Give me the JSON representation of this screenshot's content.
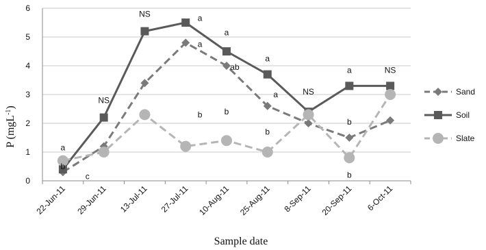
{
  "chart_data": {
    "type": "line",
    "xlabel": "Sample date",
    "ylabel": "P (mgL-1)",
    "ylabel_base": "P (mgL",
    "ylabel_sup": "-1",
    "ylabel_close": ")",
    "ylim": [
      0,
      6
    ],
    "yticks": [
      "0",
      "1",
      "2",
      "3",
      "4",
      "5",
      "6"
    ],
    "grid": true,
    "legend_position": "right",
    "categories": [
      "22-Jun-11",
      "29-Jun-11",
      "13-Jul-11",
      "27-Jul-11",
      "10-Aug-11",
      "25-Aug-11",
      "8-Sep-11",
      "20-Sep-11",
      "6-Oct-11"
    ],
    "series": [
      {
        "name": "Sand",
        "values": [
          0.3,
          1.2,
          3.4,
          4.8,
          4.0,
          2.6,
          2.0,
          1.5,
          2.1
        ],
        "color": "#7a7a7a",
        "dash": "dashed",
        "marker": "diamond"
      },
      {
        "name": "Soil",
        "values": [
          0.4,
          2.2,
          5.2,
          5.5,
          4.5,
          3.7,
          2.4,
          3.3,
          3.3
        ],
        "color": "#5a5a5a",
        "dash": "solid",
        "marker": "square"
      },
      {
        "name": "Slate",
        "values": [
          0.7,
          1.0,
          2.3,
          1.2,
          1.4,
          1.0,
          2.3,
          0.8,
          3.0
        ],
        "color": "#b5b5b5",
        "dash": "dashed",
        "marker": "circle"
      }
    ],
    "annotations": [
      {
        "text": "a",
        "x": 0,
        "y": 1.15
      },
      {
        "text": "b",
        "x": 0,
        "y": 0.5
      },
      {
        "text": "c",
        "x": 0.6,
        "y": 0.15
      },
      {
        "text": "NS",
        "x": 1,
        "y": 2.8
      },
      {
        "text": "NS",
        "x": 2,
        "y": 5.8
      },
      {
        "text": "a",
        "x": 3.35,
        "y": 5.65
      },
      {
        "text": "a",
        "x": 3.35,
        "y": 4.75
      },
      {
        "text": "b",
        "x": 3.35,
        "y": 2.3
      },
      {
        "text": "a",
        "x": 4,
        "y": 5.15
      },
      {
        "text": "ab",
        "x": 4.2,
        "y": 3.95
      },
      {
        "text": "b",
        "x": 4,
        "y": 2.4
      },
      {
        "text": "a",
        "x": 5,
        "y": 4.25
      },
      {
        "text": "a",
        "x": 5.2,
        "y": 3.0
      },
      {
        "text": "b",
        "x": 5,
        "y": 1.7
      },
      {
        "text": "NS",
        "x": 6,
        "y": 3.1
      },
      {
        "text": "a",
        "x": 7,
        "y": 3.85
      },
      {
        "text": "b",
        "x": 7,
        "y": 2.05
      },
      {
        "text": "b",
        "x": 7,
        "y": 0.2
      },
      {
        "text": "NS",
        "x": 8,
        "y": 3.85
      }
    ]
  }
}
